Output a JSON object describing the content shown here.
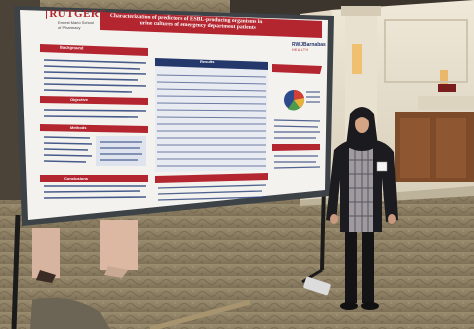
{
  "poster": {
    "institution": "RUTGERS",
    "school_line1": "Ernest Mario School",
    "school_line2": "of Pharmacy",
    "title_line1": "Characterization of predictors of ESBL-producing organisms in",
    "title_line2": "urine cultures of emergency department patients",
    "partner_logo_main": "RWJBarnabas",
    "partner_logo_sub": "HEALTH",
    "sections": [
      "Background",
      "Objective",
      "Methods",
      "Results",
      "Conclusions"
    ]
  },
  "colors": {
    "poster_red": "#b32630",
    "poster_navy": "#25386b",
    "carpet": "#8d7f63",
    "wall": "#e8e2d2",
    "hijab": "#1a1a1f"
  }
}
